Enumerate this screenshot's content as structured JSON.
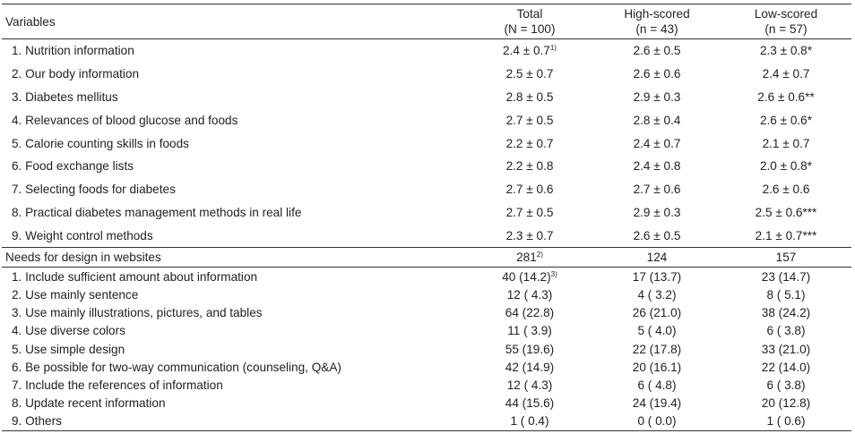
{
  "header": {
    "variables": "Variables",
    "total": "Total",
    "total_n": "(N = 100)",
    "high": "High-scored",
    "high_n": "(n = 43)",
    "low": "Low-scored",
    "low_n": "(n = 57)"
  },
  "section1": {
    "rows": [
      {
        "label": "1. Nutrition information",
        "total": "2.4 ± 0.7",
        "total_sup": "1)",
        "high": "2.6 ± 0.5",
        "low": "2.3 ± 0.8*"
      },
      {
        "label": "2. Our body information",
        "total": "2.5 ± 0.7",
        "total_sup": "",
        "high": "2.6 ± 0.6",
        "low": "2.4 ± 0.7"
      },
      {
        "label": "3. Diabetes mellitus",
        "total": "2.8 ± 0.5",
        "total_sup": "",
        "high": "2.9 ± 0.3",
        "low": "2.6 ± 0.6**"
      },
      {
        "label": "4. Relevances of blood glucose and foods",
        "total": "2.7 ± 0.5",
        "total_sup": "",
        "high": "2.8 ± 0.4",
        "low": "2.6 ± 0.6*"
      },
      {
        "label": "5. Calorie counting skills in foods",
        "total": "2.2 ± 0.7",
        "total_sup": "",
        "high": "2.4 ± 0.7",
        "low": "2.1 ± 0.7"
      },
      {
        "label": "6. Food exchange lists",
        "total": "2.2 ± 0.8",
        "total_sup": "",
        "high": "2.4 ± 0.8",
        "low": "2.0 ± 0.8*"
      },
      {
        "label": "7. Selecting foods for diabetes",
        "total": "2.7 ± 0.6",
        "total_sup": "",
        "high": "2.7 ± 0.6",
        "low": "2.6 ± 0.6"
      },
      {
        "label": "8. Practical diabetes management methods in real life",
        "total": "2.7 ± 0.5",
        "total_sup": "",
        "high": "2.9 ± 0.3",
        "low": "2.5 ± 0.6***"
      },
      {
        "label": "9. Weight control methods",
        "total": "2.3 ± 0.7",
        "total_sup": "",
        "high": "2.6 ± 0.5",
        "low": "2.1 ± 0.7***"
      }
    ]
  },
  "section2": {
    "label": "Needs for design in websites",
    "total": "281",
    "total_sup": "2)",
    "high": "124",
    "low": "157",
    "rows": [
      {
        "label": "1. Include sufficient amount about information",
        "total": "40 (14.2)",
        "total_sup": "3)",
        "high": "17 (13.7)",
        "low": "23 (14.7)"
      },
      {
        "label": "2. Use mainly sentence",
        "total": "12 ( 4.3)",
        "total_sup": "",
        "high": "4 ( 3.2)",
        "low": "8 ( 5.1)"
      },
      {
        "label": "3. Use mainly illustrations, pictures, and tables",
        "total": "64 (22.8)",
        "total_sup": "",
        "high": "26 (21.0)",
        "low": "38 (24.2)"
      },
      {
        "label": "4. Use diverse colors",
        "total": "11 ( 3.9)",
        "total_sup": "",
        "high": "5 ( 4.0)",
        "low": "6 ( 3.8)"
      },
      {
        "label": "5. Use simple design",
        "total": "55 (19.6)",
        "total_sup": "",
        "high": "22 (17.8)",
        "low": "33 (21.0)"
      },
      {
        "label": "6. Be possible for two-way communication (counseling, Q&A)",
        "total": "42 (14.9)",
        "total_sup": "",
        "high": "20 (16.1)",
        "low": "22 (14.0)"
      },
      {
        "label": "7. Include the references of information",
        "total": "12 ( 4.3)",
        "total_sup": "",
        "high": "6 ( 4.8)",
        "low": "6 ( 3.8)"
      },
      {
        "label": "8. Update recent information",
        "total": "44 (15.6)",
        "total_sup": "",
        "high": "24 (19.4)",
        "low": "20 (12.8)"
      },
      {
        "label": "9. Others",
        "total": "1 ( 0.4)",
        "total_sup": "",
        "high": "0 ( 0.0)",
        "low": "1 ( 0.6)"
      }
    ]
  }
}
